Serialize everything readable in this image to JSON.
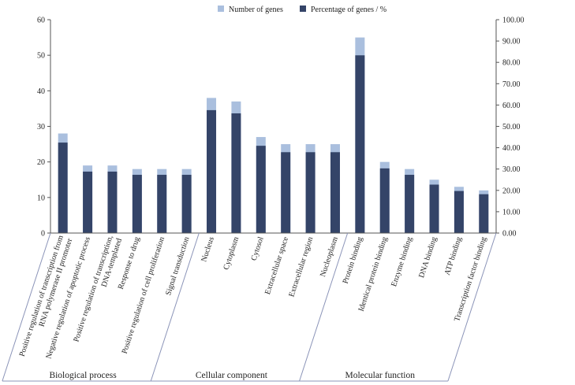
{
  "chart_data": {
    "type": "bar",
    "legend": [
      {
        "key": "genes",
        "label": "Number of genes",
        "color": "#aabfde"
      },
      {
        "key": "pct",
        "label": "Percentage of genes / %",
        "color": "#344468"
      }
    ],
    "left_axis": {
      "min": 0,
      "max": 60,
      "step": 10,
      "ticks": [
        "0",
        "10",
        "20",
        "30",
        "40",
        "50",
        "60"
      ]
    },
    "right_axis": {
      "min": 0,
      "max": 100,
      "step": 10,
      "ticks": [
        "0.00",
        "10.00",
        "20.00",
        "30.00",
        "40.00",
        "50.00",
        "60.00",
        "70.00",
        "80.00",
        "90.00",
        "100.00"
      ]
    },
    "categories": [
      "Positive regulation of transcription from RNA polymerase II promoter",
      "Negative regulation of apoptotic process",
      "Positive regulation of transcription, DNA-templated",
      "Response to drug",
      "Positive regulation of cell proliferation",
      "Signal transduction",
      "Nucleus",
      "Cytoplasm",
      "Cytosol",
      "Extracellular space",
      "Extracellular region",
      "Nucleoplasm",
      "Protein binding",
      "Identical protein binding",
      "Enzyme binding",
      "DNA binding",
      "ATP binding",
      "Transcription factor binding"
    ],
    "category_labels": [
      [
        "Positive regulation of transcription from",
        "RNA polymerase II promoter"
      ],
      [
        "Negative regulation of apoptotic process"
      ],
      [
        "Positive regulation of transcription,",
        "DNA-templated"
      ],
      [
        "Response to drug"
      ],
      [
        "Positive regulation of cell proliferation"
      ],
      [
        "Signal transduction"
      ],
      [
        "Nucleus"
      ],
      [
        "Cytoplasm"
      ],
      [
        "Cytosol"
      ],
      [
        "Extracellular space"
      ],
      [
        "Extracellular region"
      ],
      [
        "Nucleoplasm"
      ],
      [
        "Protein binding"
      ],
      [
        "Identical protein binding"
      ],
      [
        "Enzyme binding"
      ],
      [
        "DNA binding"
      ],
      [
        "ATP binding"
      ],
      [
        "Transcription factor binding"
      ]
    ],
    "series": [
      {
        "name": "Number of genes",
        "axis": "left",
        "values": [
          28,
          19,
          19,
          18,
          18,
          18,
          38,
          37,
          27,
          25,
          25,
          25,
          55,
          20,
          18,
          15,
          13,
          12
        ]
      },
      {
        "name": "Percentage of genes / %",
        "axis": "right",
        "values": [
          42.4,
          28.8,
          28.8,
          27.3,
          27.3,
          27.3,
          57.6,
          56.1,
          40.9,
          37.9,
          37.9,
          37.9,
          83.3,
          30.3,
          27.3,
          22.7,
          19.7,
          18.2
        ]
      }
    ],
    "groups": [
      {
        "label": "Biological process",
        "count": 6
      },
      {
        "label": "Cellular component",
        "count": 6
      },
      {
        "label": "Molecular function",
        "count": 6
      }
    ]
  }
}
